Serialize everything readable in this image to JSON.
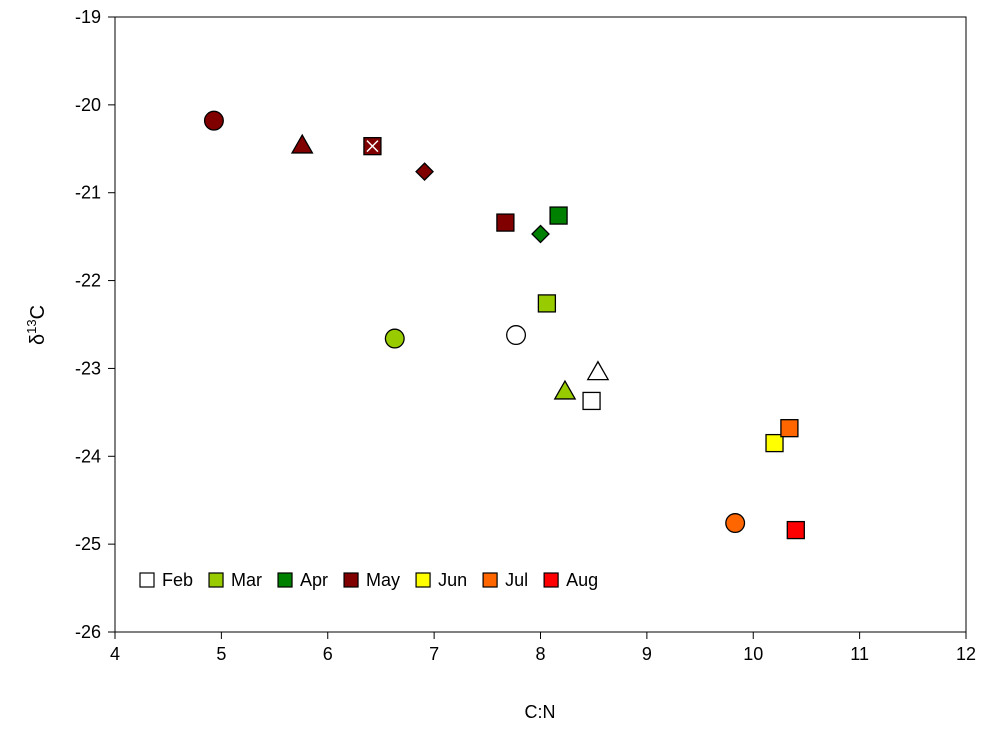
{
  "chart_data": {
    "type": "scatter",
    "x_label": "C:N",
    "y_label_parts": [
      "δ",
      "13",
      "C"
    ],
    "xlim": [
      4,
      12
    ],
    "xticks": [
      4,
      5,
      6,
      7,
      8,
      9,
      10,
      11,
      12
    ],
    "ylim": [
      -26,
      -19
    ],
    "yticks": [
      -26,
      -25,
      -24,
      -23,
      -22,
      -21,
      -20,
      -19
    ],
    "legend": "lower left",
    "series": [
      {
        "name": "Feb",
        "color": "#ffffff",
        "x": [
          8.48,
          7.77,
          8.54
        ],
        "values": [
          -23.37,
          -22.62,
          -23.04
        ],
        "markers": [
          "square",
          "circle",
          "triangle"
        ]
      },
      {
        "name": "Mar",
        "color": "#99cc00",
        "x": [
          8.06,
          6.63,
          8.23
        ],
        "values": [
          -22.26,
          -22.66,
          -23.26
        ],
        "markers": [
          "square",
          "circle",
          "triangle"
        ]
      },
      {
        "name": "Apr",
        "color": "#008000",
        "x": [
          8.17,
          8.0
        ],
        "values": [
          -21.26,
          -21.47
        ],
        "markers": [
          "square",
          "diamond"
        ]
      },
      {
        "name": "May",
        "color": "#800000",
        "x": [
          7.67,
          4.93,
          5.76,
          6.42,
          6.91
        ],
        "values": [
          -21.34,
          -20.18,
          -20.46,
          -20.47,
          -20.76
        ],
        "markers": [
          "square",
          "circle",
          "triangle",
          "square-x",
          "diamond"
        ]
      },
      {
        "name": "Jun",
        "color": "#ffff00",
        "x": [
          10.2
        ],
        "values": [
          -23.85
        ],
        "markers": [
          "square"
        ]
      },
      {
        "name": "Jul",
        "color": "#ff6600",
        "x": [
          10.34,
          9.83
        ],
        "values": [
          -23.68,
          -24.76
        ],
        "markers": [
          "square",
          "circle"
        ]
      },
      {
        "name": "Aug",
        "color": "#ff0000",
        "x": [
          10.4
        ],
        "values": [
          -24.84
        ],
        "markers": [
          "square"
        ]
      }
    ]
  }
}
